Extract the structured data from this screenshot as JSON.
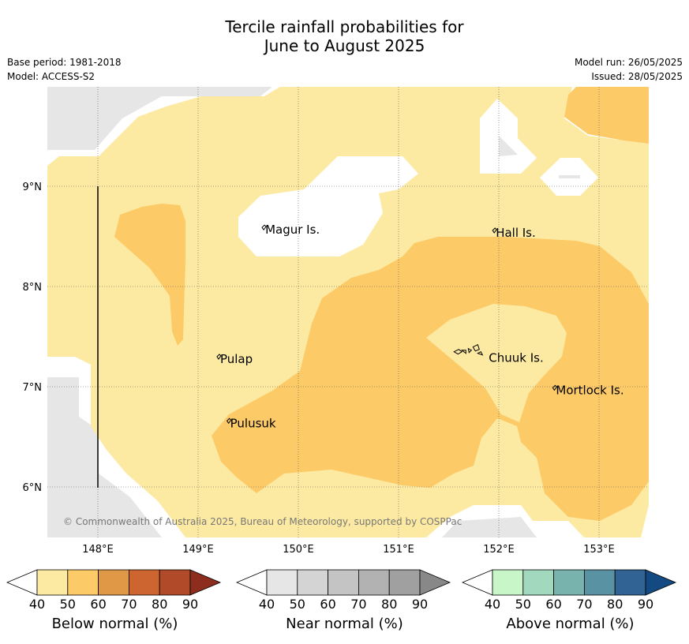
{
  "title_line1": "Tercile rainfall probabilities for",
  "title_line2": "June to August 2025",
  "base_period": "Base period: 1981-2018",
  "model": "Model: ACCESS-S2",
  "model_run": "Model run: 26/05/2025",
  "issued": "Issued: 28/05/2025",
  "copyright": "© Commonwealth of Australia 2025, Bureau of Meteorology, supported by COSPPac",
  "lon_labels": [
    "148°E",
    "149°E",
    "150°E",
    "151°E",
    "152°E",
    "153°E"
  ],
  "lat_labels": [
    "9°N",
    "8°N",
    "7°N",
    "6°N"
  ],
  "places": [
    {
      "name": "Magur Is.",
      "lon": 149.67,
      "lat": 8.55
    },
    {
      "name": "Hall Is.",
      "lon": 151.97,
      "lat": 8.52
    },
    {
      "name": "Pulap",
      "lon": 149.22,
      "lat": 7.26
    },
    {
      "name": "Chuuk Is.",
      "lon": 151.9,
      "lat": 7.27
    },
    {
      "name": "Mortlock Is.",
      "lon": 152.57,
      "lat": 6.95
    },
    {
      "name": "Pulusuk",
      "lon": 149.32,
      "lat": 6.62
    }
  ],
  "colors": {
    "no_data": "#e6e6e6",
    "below_40_50": "#fdeaa2",
    "below_50_60": "#fdca68",
    "below_60_70": "#e19846",
    "below_70_80": "#cc6530",
    "below_80_90": "#b04a28",
    "below_90": "#8c2d1d",
    "near": [
      "#e6e6e6",
      "#d4d4d4",
      "#c4c4c4",
      "#b2b2b2",
      "#a0a0a0",
      "#888888"
    ],
    "above": [
      "#c9f6c9",
      "#a2d8bd",
      "#79b3ad",
      "#5992a2",
      "#316394",
      "#134a81"
    ]
  },
  "colorbars": [
    {
      "label": "Below normal (%)",
      "ticks": [
        "40",
        "50",
        "60",
        "70",
        "80",
        "90"
      ],
      "scheme": "below"
    },
    {
      "label": "Near normal (%)",
      "ticks": [
        "40",
        "50",
        "60",
        "70",
        "80",
        "90"
      ],
      "scheme": "near"
    },
    {
      "label": "Above normal (%)",
      "ticks": [
        "40",
        "50",
        "60",
        "70",
        "80",
        "90"
      ],
      "scheme": "above"
    }
  ]
}
